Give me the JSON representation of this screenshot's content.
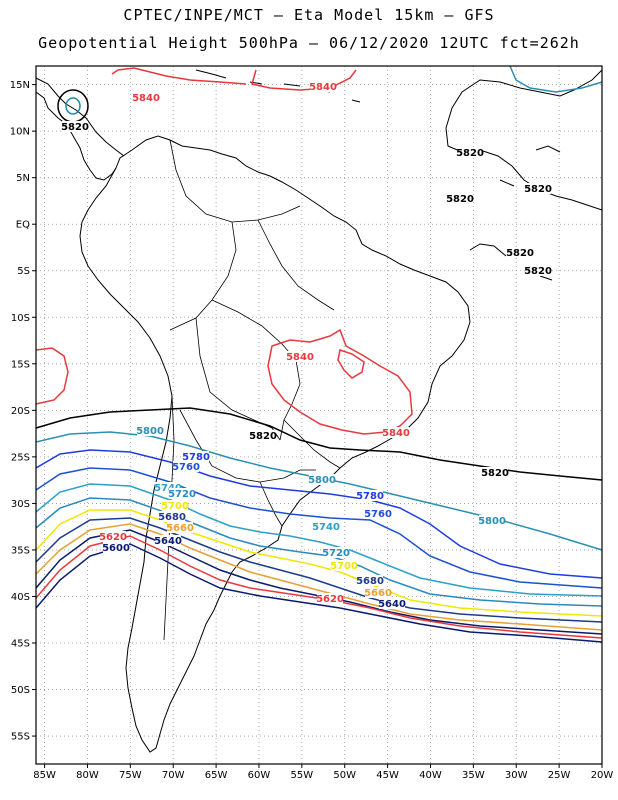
{
  "header": {
    "title_line1": "CPTEC/INPE/MCT –  Eta Model 15km – GFS",
    "title_line2": "Geopotential Height 500hPa – 06/12/2020 12UTC fct=262h"
  },
  "axes": {
    "lat_labels": [
      "15N",
      "10N",
      "5N",
      "EQ",
      "5S",
      "10S",
      "15S",
      "20S",
      "25S",
      "30S",
      "35S",
      "40S",
      "45S",
      "50S",
      "55S"
    ],
    "lon_labels": [
      "85W",
      "80W",
      "75W",
      "70W",
      "65W",
      "60W",
      "55W",
      "50W",
      "45W",
      "40W",
      "35W",
      "30W",
      "25W",
      "20W"
    ],
    "lat_range": [
      17,
      -58
    ],
    "lon_range": [
      -86,
      -20
    ],
    "grid": "dotted"
  },
  "colors": {
    "c5600": "#0a1a6e",
    "c5620": "#e8383d",
    "c5640": "#0a1a6e",
    "c5660": "#e8a030",
    "c5680": "#1e3c8c",
    "c5700": "#f0e800",
    "c5720": "#2a8ac0",
    "c5740": "#2aa0c8",
    "c5760": "#1e50d0",
    "c5780": "#1e3ce0",
    "c5800": "#2a90b4",
    "c5820": "#000000",
    "c5840": "#e8383d",
    "coast": "#000000"
  },
  "contour_labels": [
    {
      "text": "5840"
    },
    {
      "text": "5840"
    },
    {
      "text": "5820"
    },
    {
      "text": "5820"
    },
    {
      "text": "5820"
    },
    {
      "text": "5820"
    },
    {
      "text": "5820"
    },
    {
      "text": "5820"
    },
    {
      "text": "5840"
    },
    {
      "text": "5840"
    },
    {
      "text": "5800"
    },
    {
      "text": "5820"
    },
    {
      "text": "5820"
    },
    {
      "text": "5780"
    },
    {
      "text": "5760"
    },
    {
      "text": "5800"
    },
    {
      "text": "5740"
    },
    {
      "text": "5720"
    },
    {
      "text": "5780"
    },
    {
      "text": "5700"
    },
    {
      "text": "5760"
    },
    {
      "text": "5800"
    },
    {
      "text": "5680"
    },
    {
      "text": "5660"
    },
    {
      "text": "5740"
    },
    {
      "text": "5620"
    },
    {
      "text": "5640"
    },
    {
      "text": "5600"
    },
    {
      "text": "5720"
    },
    {
      "text": "5700"
    },
    {
      "text": "5680"
    },
    {
      "text": "5660"
    },
    {
      "text": "5640"
    },
    {
      "text": "5620"
    }
  ]
}
